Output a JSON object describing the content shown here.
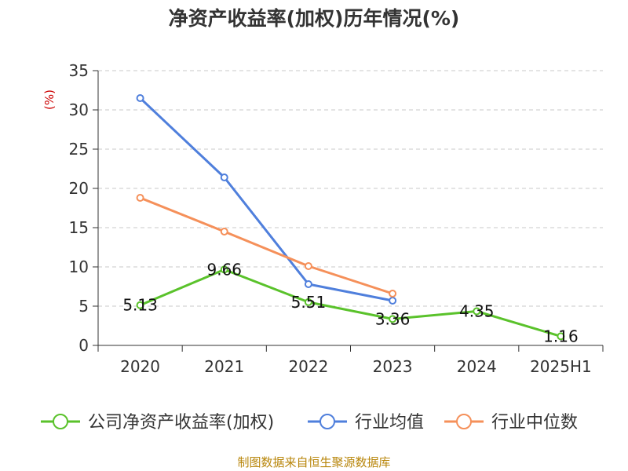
{
  "chart_data": {
    "type": "line",
    "title": "净资产收益率(加权)历年情况(%)",
    "ylabel": "(%)",
    "categories": [
      "2020",
      "2021",
      "2022",
      "2023",
      "2024",
      "2025H1"
    ],
    "ylim": [
      0,
      35
    ],
    "yticks": [
      0,
      5,
      10,
      15,
      20,
      25,
      30,
      35
    ],
    "grid": true,
    "legend_position": "bottom",
    "series": [
      {
        "name": "公司净资产收益率(加权)",
        "color": "#5ac22b",
        "values": [
          5.13,
          9.66,
          5.51,
          3.36,
          4.35,
          1.16
        ],
        "labels": [
          "5.13",
          "9.66",
          "5.51",
          "3.36",
          "4.35",
          "1.16"
        ]
      },
      {
        "name": "行业均值",
        "color": "#4f7fdc",
        "values": [
          31.5,
          21.4,
          7.8,
          5.7,
          null,
          null
        ]
      },
      {
        "name": "行业中位数",
        "color": "#f5905a",
        "values": [
          18.8,
          14.5,
          10.1,
          6.6,
          null,
          null
        ]
      }
    ]
  },
  "source": "制图数据来自恒生聚源数据库"
}
